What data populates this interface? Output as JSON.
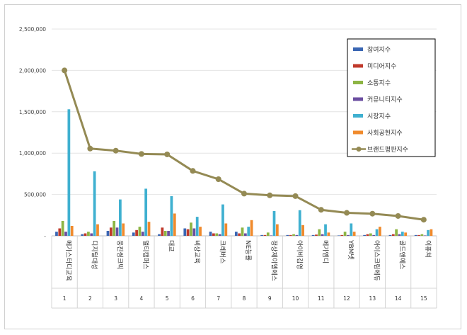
{
  "chart_data": {
    "type": "bar",
    "title": "",
    "xlabel": "",
    "ylabel": "",
    "ylim": [
      0,
      2500000
    ],
    "yticks": [
      "2,500,000",
      "2,000,000",
      "1,500,000",
      "1,000,000",
      "500,000",
      "-"
    ],
    "ytick_values": [
      2500000,
      2000000,
      1500000,
      1000000,
      500000,
      0
    ],
    "ranks": [
      "1",
      "2",
      "3",
      "4",
      "5",
      "6",
      "7",
      "8",
      "9",
      "10",
      "11",
      "12",
      "13",
      "14",
      "15"
    ],
    "categories": [
      "메가스터디교육",
      "디지털대성",
      "웅진씽크빅",
      "멀티캠퍼스",
      "대교",
      "비상교육",
      "크레버스",
      "NE능률",
      "정상제이엘에스",
      "아이비김영",
      "메가엠디",
      "YBM넷",
      "아이스크림에듀",
      "골드앤에스",
      "이퓨쳐"
    ],
    "legend_position": "top-right",
    "series": [
      {
        "name": "참여지수",
        "color": "#3a66b3",
        "kind": "bar",
        "values": [
          50000,
          20000,
          60000,
          40000,
          20000,
          90000,
          50000,
          50000,
          10000,
          10000,
          10000,
          5000,
          10000,
          10000,
          10000
        ]
      },
      {
        "name": "미디어지수",
        "color": "#c0392b",
        "kind": "bar",
        "values": [
          90000,
          30000,
          100000,
          70000,
          100000,
          80000,
          30000,
          30000,
          10000,
          10000,
          15000,
          10000,
          20000,
          20000,
          10000
        ]
      },
      {
        "name": "소통지수",
        "color": "#8db544",
        "kind": "bar",
        "values": [
          180000,
          50000,
          180000,
          110000,
          60000,
          160000,
          30000,
          100000,
          40000,
          20000,
          80000,
          50000,
          30000,
          80000,
          20000
        ]
      },
      {
        "name": "커뮤니티지수",
        "color": "#6b4ea0",
        "kind": "bar",
        "values": [
          50000,
          30000,
          100000,
          50000,
          60000,
          90000,
          20000,
          30000,
          5000,
          10000,
          20000,
          10000,
          10000,
          20000,
          5000
        ]
      },
      {
        "name": "시장지수",
        "color": "#3fb0d0",
        "kind": "bar",
        "values": [
          1530000,
          780000,
          440000,
          570000,
          480000,
          230000,
          380000,
          110000,
          300000,
          310000,
          140000,
          150000,
          80000,
          50000,
          70000
        ]
      },
      {
        "name": "사회공헌지수",
        "color": "#f08a2c",
        "kind": "bar",
        "values": [
          120000,
          140000,
          150000,
          170000,
          270000,
          110000,
          150000,
          190000,
          140000,
          130000,
          40000,
          50000,
          110000,
          40000,
          80000
        ]
      },
      {
        "name": "브랜드평판지수",
        "color": "#948a54",
        "kind": "line",
        "values": [
          2000000,
          1055000,
          1030000,
          990000,
          985000,
          785000,
          685000,
          510000,
          490000,
          480000,
          315000,
          278000,
          268000,
          240000,
          195000
        ]
      }
    ]
  }
}
